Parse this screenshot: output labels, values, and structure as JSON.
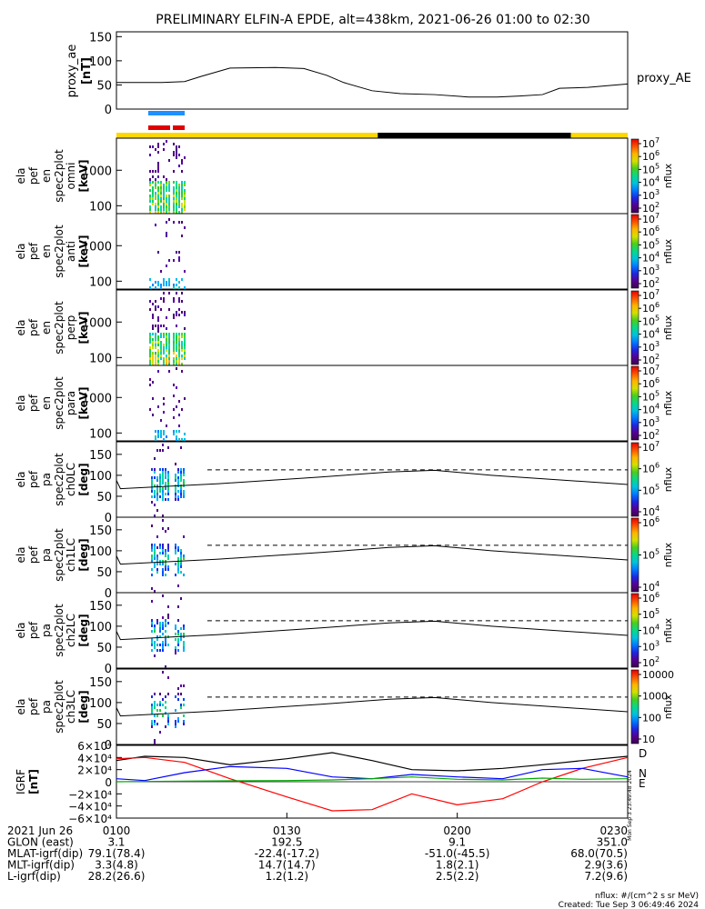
{
  "title": "PRELIMINARY ELFIN-A EPDE, alt=438km, 2021-06-26 01:00 to 02:30",
  "chart_data": {
    "type": "line",
    "time_range": [
      "2021-06-26 01:00",
      "2021-06-26 02:30"
    ],
    "proxy_ae": {
      "ylabel": [
        "proxy_ae",
        "[nT]"
      ],
      "yticks": [
        "150",
        "100",
        "50",
        "0"
      ],
      "ylim": [
        0,
        160
      ],
      "series_label": "proxy_AE",
      "t_min": [
        0,
        8,
        12,
        15,
        20,
        28,
        33,
        37,
        40,
        45,
        50,
        56,
        62,
        67,
        71,
        75,
        78,
        83,
        86,
        90
      ],
      "values": [
        55,
        55,
        57,
        68,
        85,
        86,
        84,
        70,
        55,
        38,
        32,
        30,
        25,
        25,
        27,
        30,
        43,
        45,
        48,
        52
      ]
    },
    "status_bars": {
      "science_zones": 2,
      "orbit_bar": [
        "yellow",
        "black",
        "yellow"
      ]
    },
    "spectrograms": [
      {
        "ylabel": [
          "ela",
          "pef",
          "en",
          "spec2plot",
          "omni",
          "[keV]"
        ],
        "yticks": [
          "1000",
          "100"
        ],
        "cbar_label": "nflux",
        "cbar_ticks": [
          "10^2",
          "10^3",
          "10^4",
          "10^5",
          "10^6",
          "10^7"
        ]
      },
      {
        "ylabel": [
          "ela",
          "pef",
          "en",
          "spec2plot",
          "anti",
          "[keV]"
        ],
        "yticks": [
          "1000",
          "100"
        ],
        "cbar_label": "nflux",
        "cbar_ticks": [
          "10^2",
          "10^3",
          "10^4",
          "10^5",
          "10^6",
          "10^7"
        ]
      },
      {
        "ylabel": [
          "ela",
          "pef",
          "en",
          "spec2plot",
          "perp",
          "[keV]"
        ],
        "yticks": [
          "1000",
          "100"
        ],
        "cbar_label": "nflux",
        "cbar_ticks": [
          "10^2",
          "10^3",
          "10^4",
          "10^5",
          "10^6",
          "10^7"
        ]
      },
      {
        "ylabel": [
          "ela",
          "pef",
          "en",
          "spec2plot",
          "para",
          "[keV]"
        ],
        "yticks": [
          "1000",
          "100"
        ],
        "cbar_label": "nflux",
        "cbar_ticks": [
          "10^2",
          "10^3",
          "10^4",
          "10^5",
          "10^6",
          "10^7"
        ]
      }
    ],
    "pitch_angle_panels": [
      {
        "ylabel": [
          "ela",
          "pef",
          "pa",
          "spec2plot",
          "ch0LC",
          "[deg]"
        ],
        "yticks": [
          "150",
          "100",
          "50",
          "0"
        ],
        "cbar_label": "nflux",
        "cbar_ticks": [
          "10^4",
          "10^5",
          "10^6",
          "10^7"
        ]
      },
      {
        "ylabel": [
          "ela",
          "pef",
          "pa",
          "spec2plot",
          "ch1LC",
          "[deg]"
        ],
        "yticks": [
          "150",
          "100",
          "50",
          "0"
        ],
        "cbar_label": "nflux",
        "cbar_ticks": [
          "10^4",
          "10^5",
          "10^6"
        ]
      },
      {
        "ylabel": [
          "ela",
          "pef",
          "pa",
          "spec2plot",
          "ch2LC",
          "[deg]"
        ],
        "yticks": [
          "150",
          "100",
          "50",
          "0"
        ],
        "cbar_label": "nflux",
        "cbar_ticks": [
          "10^2",
          "10^3",
          "10^4",
          "10^5",
          "10^6"
        ]
      },
      {
        "ylabel": [
          "ela",
          "pef",
          "pa",
          "spec2plot",
          "ch3LC",
          "[deg]"
        ],
        "yticks": [
          "150",
          "100",
          "50",
          "0"
        ],
        "cbar_label": "nflux",
        "cbar_ticks": [
          "10",
          "100",
          "1000",
          "10000"
        ]
      }
    ],
    "loss_cone": {
      "t_min": [
        0,
        0.7,
        18,
        36,
        48,
        56,
        66,
        90
      ],
      "solid_deg": [
        88,
        68,
        80,
        96,
        108,
        112,
        100,
        78
      ],
      "dashed_deg": 113
    },
    "igrf": {
      "ylabel": [
        "IGRF",
        "[nT]"
      ],
      "yticks": [
        "6×10⁴",
        "4×10⁴",
        "2×10⁴",
        "0",
        "−2×10⁴",
        "−4×10⁴",
        "−6×10⁴"
      ],
      "ylim": [
        -60000,
        60000
      ],
      "legend": [
        "D",
        "N",
        "E"
      ],
      "colors": {
        "D": "#ff0000",
        "N": "#0000ff",
        "E": "#00aa00",
        "total": "#000000"
      },
      "t_min": [
        0,
        5,
        12,
        20,
        30,
        38,
        45,
        52,
        60,
        68,
        75,
        82,
        90
      ],
      "total": [
        35000,
        42000,
        40000,
        28000,
        38000,
        48000,
        35000,
        20000,
        18000,
        22000,
        28000,
        35000,
        42000
      ],
      "D": [
        38000,
        40000,
        32000,
        5000,
        -25000,
        -48000,
        -46000,
        -20000,
        -38000,
        -28000,
        0,
        22000,
        40000
      ],
      "N": [
        5000,
        2000,
        15000,
        25000,
        22000,
        8000,
        5000,
        12000,
        8000,
        5000,
        20000,
        22000,
        8000
      ],
      "E": [
        0,
        500,
        1000,
        1500,
        2000,
        3000,
        5000,
        8000,
        4000,
        3000,
        6000,
        4000,
        5000
      ]
    },
    "ephemeris": {
      "rows": [
        {
          "label": "2021 Jun 26",
          "values": [
            "0100",
            "0130",
            "0200",
            "0230"
          ]
        },
        {
          "label": "GLON (east)",
          "values": [
            "3.1",
            "192.5",
            "9.1",
            "351.0"
          ]
        },
        {
          "label": "MLAT-igrf(dip)",
          "values": [
            "79.1(78.4)",
            "-22.4(-17.2)",
            "-51.0(-45.5)",
            "68.0(70.5)"
          ]
        },
        {
          "label": "MLT-igrf(dip)",
          "values": [
            "3.3(4.8)",
            "14.7(14.7)",
            "1.8(2.1)",
            "2.9(3.6)"
          ]
        },
        {
          "label": "L-igrf(dip)",
          "values": [
            "28.2(26.6)",
            "1.2(1.2)",
            "2.5(2.2)",
            "7.2(9.6)"
          ]
        }
      ]
    }
  },
  "footer": {
    "units": "nflux: #/(cm^2 s sr MeV)",
    "created": "Created: Tue Sep  3 06:49:46 2024",
    "side_stamp": "Mon Sep  3 23:49:48 2024"
  }
}
